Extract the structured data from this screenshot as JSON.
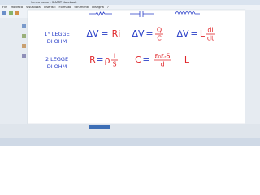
{
  "window": {
    "title": "Senza nome - SMART Notebook",
    "menu": [
      "File",
      "Modifica",
      "Visualizza",
      "Inserisci",
      "Formato",
      "Strumenti",
      "Disegna",
      "?"
    ]
  },
  "notes": {
    "row1_label": [
      "1° LEGGE",
      "DI OHM"
    ],
    "row2_label": [
      "2 LEGGE",
      "DI OHM"
    ],
    "resistor": {
      "lhs": "ΔV",
      "eq": "=",
      "rhs": "Ri"
    },
    "capacitor": {
      "lhs": "ΔV",
      "eq": "=",
      "num": "Q",
      "den": "C"
    },
    "inductor": {
      "lhs": "ΔV",
      "eq": "=",
      "coef": "L",
      "num": "di",
      "den": "dt"
    },
    "resistance": {
      "lhs": "R",
      "eq": "=",
      "coef": "ρ",
      "num": "l",
      "den": "S"
    },
    "capacitance": {
      "lhs": "C",
      "eq": "=",
      "num": "ε₀εᵣS",
      "den": "d"
    },
    "inductance": {
      "lhs": "L"
    }
  }
}
